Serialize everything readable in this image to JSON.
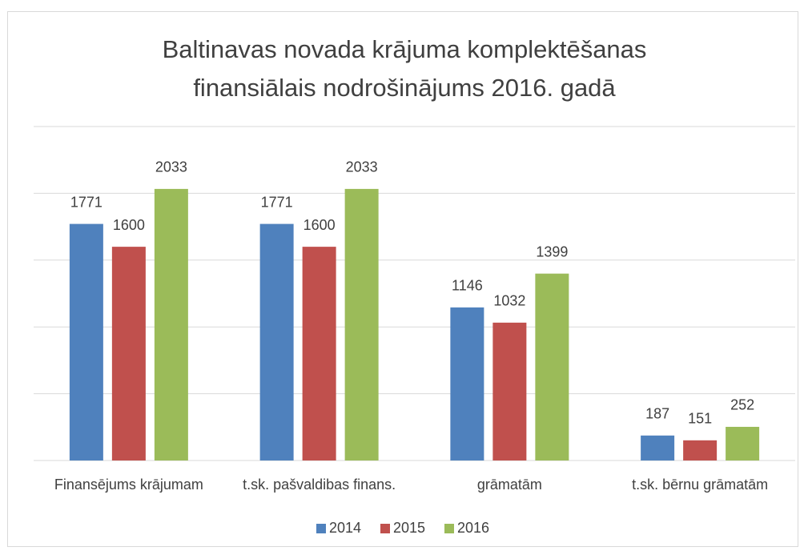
{
  "chart_data": {
    "type": "bar",
    "title": [
      "Baltinavas novada krājuma komplektēšanas",
      "finansiālais nodrošinājums 2016. gadā"
    ],
    "categories": [
      "Finansējums krājumam",
      "t.sk. pašvaldibas finans.",
      "grāmatām",
      "t.sk. bērnu grāmatām"
    ],
    "series": [
      {
        "name": "2014",
        "color": "#4f81bd",
        "values": [
          1771,
          1771,
          1146,
          187
        ]
      },
      {
        "name": "2015",
        "color": "#c0504d",
        "values": [
          1600,
          1600,
          1032,
          151
        ]
      },
      {
        "name": "2016",
        "color": "#9bbb59",
        "values": [
          2033,
          2033,
          1399,
          252
        ]
      }
    ],
    "ylim": [
      0,
      2500
    ],
    "yticks": [
      0,
      500,
      1000,
      1500,
      2000,
      2500
    ],
    "grid": true,
    "legend": "bottom"
  }
}
